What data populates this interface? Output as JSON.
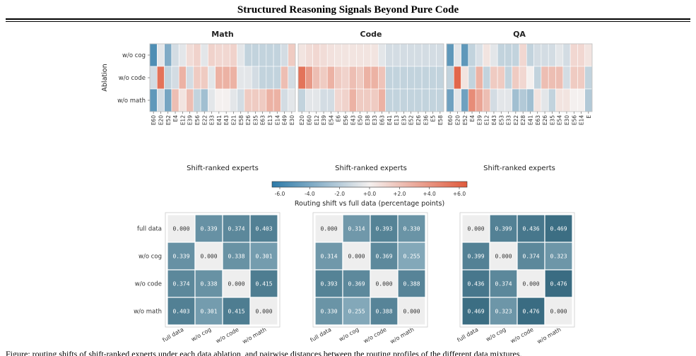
{
  "page": {
    "title": "Structured Reasoning Signals Beyond Pure Code",
    "caption": "Figure: routing shifts of shift-ranked experts under each data ablation, and pairwise distances between the routing profiles of the different data mixtures."
  },
  "colors": {
    "negative": "#2d7aa8",
    "neutral": "#f4f0ef",
    "positive": "#e05a3c",
    "distance_low": "#eeeeee",
    "distance_high": "#35687e",
    "grid_line": "#ffffff"
  },
  "chart_data": [
    {
      "type": "heatmap",
      "title": "Math",
      "ylabel": "Ablation",
      "xlabel": "Shift-ranked experts",
      "rows": [
        "w/o cog",
        "w/o code",
        "w/o math"
      ],
      "columns": [
        "E60",
        "E20",
        "E52",
        "E4",
        "E12",
        "E39",
        "E56",
        "E22",
        "E33",
        "E41",
        "E43",
        "E21",
        "E58",
        "E26",
        "E35",
        "E63",
        "E13",
        "E14",
        "E49",
        "E30"
      ],
      "values": [
        [
          -5.0,
          -0.5,
          -3.5,
          -1.0,
          -0.5,
          0.8,
          1.2,
          -0.5,
          1.2,
          1.0,
          1.0,
          1.2,
          -0.5,
          -1.5,
          -1.5,
          -1.5,
          -1.5,
          -1.5,
          -1.0,
          1.5
        ],
        [
          -1.0,
          5.0,
          -1.5,
          -1.0,
          2.5,
          -1.0,
          1.5,
          1.5,
          -0.5,
          2.5,
          2.5,
          2.5,
          -0.5,
          -0.5,
          -1.0,
          -1.5,
          -1.5,
          -1.5,
          2.0,
          -1.0
        ],
        [
          -4.5,
          -1.0,
          -3.8,
          2.0,
          0.5,
          2.0,
          -1.5,
          -2.5,
          -0.5,
          0.0,
          0.0,
          -0.5,
          -1.0,
          1.5,
          1.5,
          1.5,
          2.5,
          2.5,
          -1.0,
          -0.5
        ]
      ],
      "colorbar": {
        "label": "Routing shift vs full data (percentage points)",
        "ticks": [
          "-6.0",
          "-4.0",
          "-2.0",
          "+0.0",
          "+2.0",
          "+4.0",
          "+6.0"
        ],
        "range": [
          -6,
          6
        ]
      }
    },
    {
      "type": "heatmap",
      "title": "Code",
      "ylabel": "",
      "xlabel": "Shift-ranked experts",
      "rows": [
        "w/o cog",
        "w/o code",
        "w/o math"
      ],
      "columns": [
        "E20",
        "E60",
        "E12",
        "E39",
        "E54",
        "E6",
        "E56",
        "E43",
        "E50",
        "E38",
        "E33",
        "E63",
        "E41",
        "E13",
        "E35",
        "E52",
        "E26",
        "E36",
        "E5",
        "E58"
      ],
      "values": [
        [
          0.5,
          0.8,
          1.0,
          0.8,
          0.6,
          0.5,
          0.5,
          0.5,
          0.5,
          0.5,
          0.5,
          -0.5,
          -1.0,
          -1.0,
          -1.0,
          -1.0,
          -1.0,
          -1.0,
          -1.0,
          -1.0
        ],
        [
          5.0,
          3.5,
          2.0,
          1.5,
          2.5,
          1.5,
          1.2,
          2.0,
          1.5,
          2.5,
          2.5,
          1.8,
          -1.5,
          -1.5,
          -1.5,
          -1.5,
          -1.5,
          -1.5,
          -1.5,
          -1.5
        ],
        [
          -1.5,
          -0.5,
          -0.5,
          -1.0,
          -1.0,
          1.0,
          1.2,
          2.5,
          1.5,
          1.5,
          1.5,
          2.5,
          -1.5,
          -1.5,
          -1.5,
          -1.5,
          -1.5,
          -1.5,
          -1.5,
          -1.5
        ]
      ]
    },
    {
      "type": "heatmap",
      "title": "QA",
      "ylabel": "",
      "xlabel": "Shift-ranked experts",
      "rows": [
        "w/o cog",
        "w/o code",
        "w/o math"
      ],
      "columns": [
        "E60",
        "E20",
        "E52",
        "E4",
        "E39",
        "E12",
        "E43",
        "E53",
        "E33",
        "E22",
        "E28",
        "E41",
        "E63",
        "E26",
        "E35",
        "E54",
        "E30",
        "E56",
        "E14",
        "E"
      ],
      "values": [
        [
          -4.5,
          -0.5,
          -4.5,
          -1.5,
          -0.8,
          0.5,
          -0.5,
          -1.5,
          -1.5,
          -1.5,
          1.0,
          -1.5,
          -1.0,
          -1.0,
          -1.0,
          -0.5,
          -1.0,
          1.0,
          1.0,
          0.5
        ],
        [
          -1.5,
          5.5,
          0.5,
          -1.5,
          2.5,
          -1.5,
          1.5,
          1.5,
          -1.5,
          1.5,
          1.0,
          0.0,
          -1.5,
          2.0,
          2.0,
          2.0,
          -1.0,
          1.5,
          1.5,
          -1.5
        ],
        [
          -4.0,
          -0.5,
          -4.0,
          4.0,
          3.0,
          2.0,
          -1.0,
          -0.5,
          -0.5,
          -2.5,
          -2.0,
          -2.5,
          0.5,
          -0.5,
          -1.5,
          0.5,
          0.5,
          0.0,
          0.0,
          -2.0
        ]
      ]
    },
    {
      "type": "heatmap",
      "labels": [
        "full data",
        "w/o cog",
        "w/o code",
        "w/o math"
      ],
      "values": [
        [
          "0.000",
          "0.339",
          "0.374",
          "0.403"
        ],
        [
          "0.339",
          "0.000",
          "0.338",
          "0.301"
        ],
        [
          "0.374",
          "0.338",
          "0.000",
          "0.415"
        ],
        [
          "0.403",
          "0.301",
          "0.415",
          "0.000"
        ]
      ]
    },
    {
      "type": "heatmap",
      "labels": [
        "full data",
        "w/o cog",
        "w/o code",
        "w/o math"
      ],
      "values": [
        [
          "0.000",
          "0.314",
          "0.393",
          "0.330"
        ],
        [
          "0.314",
          "0.000",
          "0.369",
          "0.255"
        ],
        [
          "0.393",
          "0.369",
          "0.000",
          "0.388"
        ],
        [
          "0.330",
          "0.255",
          "0.388",
          "0.000"
        ]
      ]
    },
    {
      "type": "heatmap",
      "labels": [
        "full data",
        "w/o cog",
        "w/o code",
        "w/o math"
      ],
      "values": [
        [
          "0.000",
          "0.399",
          "0.436",
          "0.469"
        ],
        [
          "0.399",
          "0.000",
          "0.374",
          "0.323"
        ],
        [
          "0.436",
          "0.374",
          "0.000",
          "0.476"
        ],
        [
          "0.469",
          "0.323",
          "0.476",
          "0.000"
        ]
      ]
    }
  ]
}
